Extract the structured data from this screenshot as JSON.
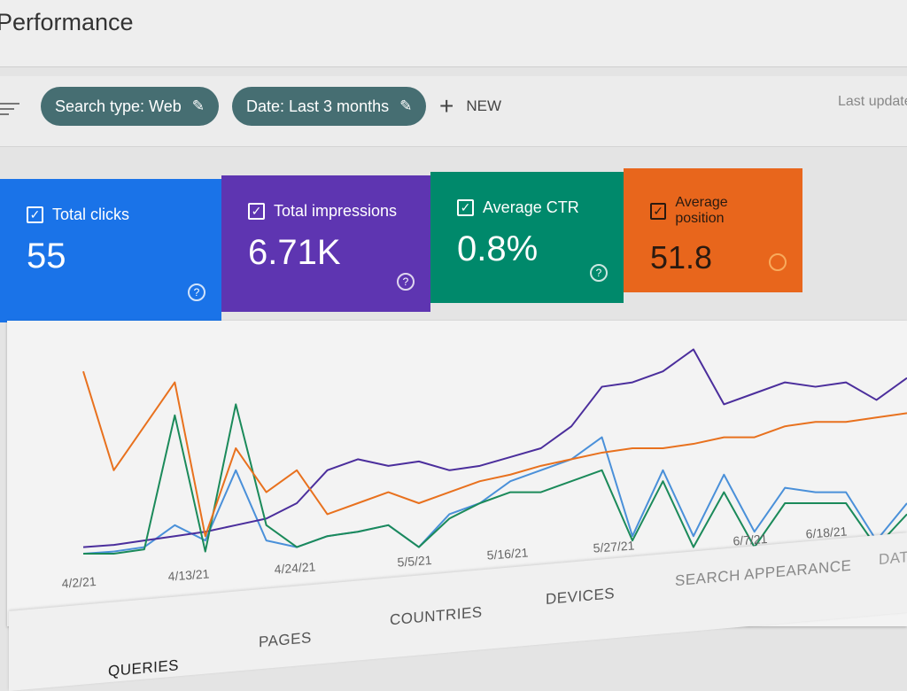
{
  "header": {
    "title": "Performance"
  },
  "filters": {
    "search_type": "Search type: Web",
    "date": "Date: Last 3 months",
    "new_label": "NEW",
    "last_updated": "Last update"
  },
  "metrics": [
    {
      "label": "Total clicks",
      "value": "55",
      "color": "#1a73e8",
      "checked": true
    },
    {
      "label": "Total impressions",
      "value": "6.71K",
      "color": "#5e35b1",
      "checked": true
    },
    {
      "label": "Average CTR",
      "value": "0.8%",
      "color": "#00897b",
      "checked": true
    },
    {
      "label": "Average position",
      "value": "51.8",
      "color": "#e8710a",
      "checked": true
    }
  ],
  "chart_data": {
    "type": "line",
    "x": [
      "4/2/21",
      "4/5/21",
      "4/8/21",
      "4/11/21",
      "4/14/21",
      "4/17/21",
      "4/20/21",
      "4/23/21",
      "4/26/21",
      "4/29/21",
      "5/2/21",
      "5/5/21",
      "5/8/21",
      "5/11/21",
      "5/14/21",
      "5/17/21",
      "5/20/21",
      "5/23/21",
      "5/26/21",
      "5/29/21",
      "6/1/21",
      "6/4/21",
      "6/7/21",
      "6/10/21",
      "6/13/21",
      "6/16/21",
      "6/19/21",
      "6/22/21"
    ],
    "x_tick_labels": [
      "4/2/21",
      "4/13/21",
      "4/24/21",
      "5/5/21",
      "5/16/21",
      "5/27/21",
      "6/7/21",
      "6/18/21"
    ],
    "series": [
      {
        "name": "Total clicks",
        "color": "#4a90d9",
        "values": [
          2,
          3,
          5,
          15,
          8,
          40,
          8,
          5,
          10,
          12,
          15,
          5,
          20,
          25,
          35,
          40,
          45,
          55,
          10,
          40,
          10,
          38,
          12,
          32,
          30,
          30,
          8,
          25
        ]
      },
      {
        "name": "Total impressions",
        "color": "#4b2e9c",
        "values": [
          5,
          6,
          8,
          10,
          12,
          15,
          18,
          25,
          40,
          45,
          42,
          44,
          40,
          42,
          46,
          50,
          60,
          78,
          80,
          85,
          95,
          70,
          75,
          80,
          78,
          80,
          72,
          82
        ]
      },
      {
        "name": "Average CTR",
        "color": "#1b8a5a",
        "values": [
          2,
          2,
          4,
          65,
          3,
          70,
          15,
          5,
          10,
          12,
          15,
          5,
          18,
          25,
          30,
          30,
          35,
          40,
          8,
          35,
          5,
          30,
          5,
          25,
          25,
          25,
          5,
          20
        ]
      },
      {
        "name": "Average position",
        "color": "#e8711e",
        "values": [
          85,
          40,
          60,
          80,
          10,
          50,
          30,
          40,
          20,
          25,
          30,
          25,
          30,
          35,
          38,
          42,
          45,
          48,
          50,
          50,
          52,
          55,
          55,
          60,
          62,
          62,
          64,
          66
        ]
      }
    ],
    "grid": false,
    "legend": "none"
  },
  "tabs": [
    "QUERIES",
    "PAGES",
    "COUNTRIES",
    "DEVICES",
    "SEARCH APPEARANCE",
    "DATES"
  ]
}
